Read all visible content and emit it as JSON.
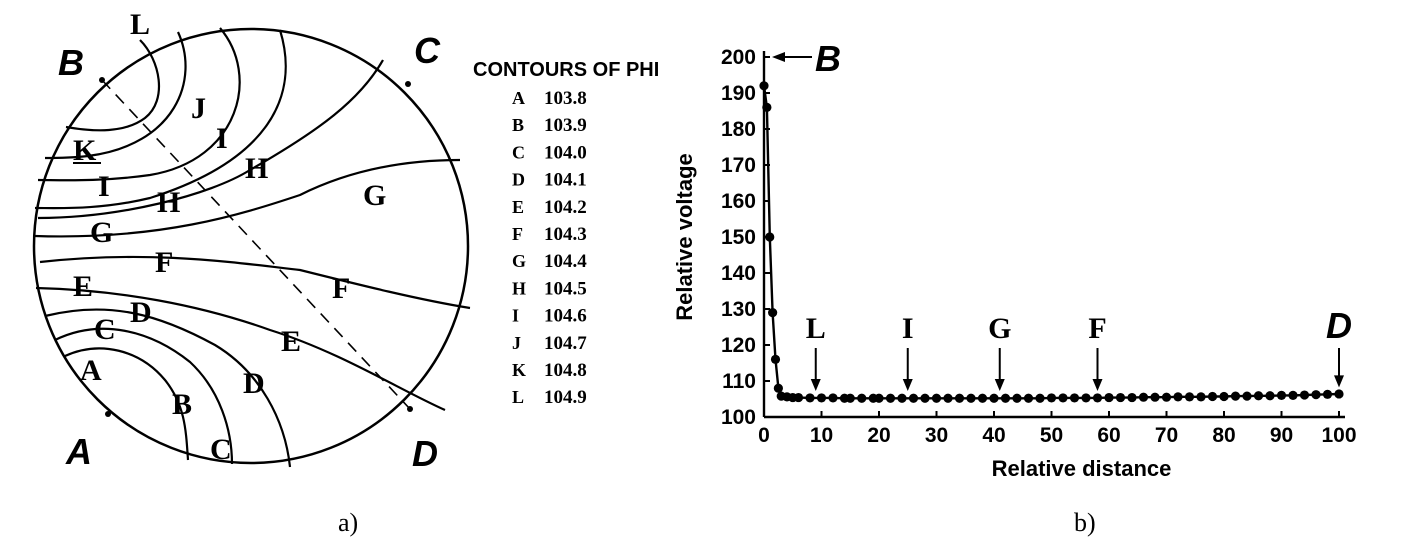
{
  "panels": {
    "a": "a)",
    "b": "b)"
  },
  "map": {
    "corners": {
      "A": "A",
      "B": "B",
      "C": "C",
      "D": "D"
    },
    "legend": {
      "title": "CONTOURS OF PHI",
      "items": [
        {
          "key": "A",
          "value": "103.8"
        },
        {
          "key": "B",
          "value": "103.9"
        },
        {
          "key": "C",
          "value": "104.0"
        },
        {
          "key": "D",
          "value": "104.1"
        },
        {
          "key": "E",
          "value": "104.2"
        },
        {
          "key": "F",
          "value": "104.3"
        },
        {
          "key": "G",
          "value": "104.4"
        },
        {
          "key": "H",
          "value": "104.5"
        },
        {
          "key": "I",
          "value": "104.6"
        },
        {
          "key": "J",
          "value": "104.7"
        },
        {
          "key": "K",
          "value": "104.8"
        },
        {
          "key": "L",
          "value": "104.9"
        }
      ]
    },
    "contour_labels": {
      "L": "L",
      "J": "J",
      "K": "K",
      "I1": "I",
      "I2": "I",
      "H1": "H",
      "H2": "H",
      "G1": "G",
      "G2": "G",
      "F1": "F",
      "F2": "F",
      "E1": "E",
      "E2": "E",
      "D1": "D",
      "D2": "D",
      "C1": "C",
      "C2": "C",
      "B": "B",
      "A": "A"
    }
  },
  "chart_data": {
    "type": "line",
    "title": "",
    "xlabel": "Relative distance",
    "ylabel": "Relative voltage",
    "xlim": [
      0,
      100
    ],
    "ylim": [
      100,
      200
    ],
    "xticks": [
      0,
      10,
      20,
      30,
      40,
      50,
      60,
      70,
      80,
      90,
      100
    ],
    "yticks": [
      100,
      110,
      120,
      130,
      140,
      150,
      160,
      170,
      180,
      190,
      200
    ],
    "series": [
      {
        "x": [
          0,
          0.5,
          1,
          1.5,
          2,
          2.5,
          3,
          4,
          5,
          6,
          8,
          10,
          12,
          14,
          15,
          17,
          19,
          20,
          22,
          24,
          26,
          28,
          30,
          32,
          34,
          36,
          38,
          40,
          42,
          44,
          46,
          48,
          50,
          52,
          54,
          56,
          58,
          60,
          62,
          64,
          66,
          68,
          70,
          72,
          74,
          76,
          78,
          80,
          82,
          84,
          86,
          88,
          90,
          92,
          94,
          96,
          98,
          100
        ],
        "y": [
          192,
          186,
          150,
          129,
          116,
          108,
          105.8,
          105.6,
          105.4,
          105.4,
          105.3,
          105.3,
          105.3,
          105.2,
          105.2,
          105.2,
          105.2,
          105.2,
          105.2,
          105.2,
          105.2,
          105.2,
          105.2,
          105.2,
          105.2,
          105.2,
          105.2,
          105.2,
          105.2,
          105.2,
          105.2,
          105.2,
          105.3,
          105.3,
          105.3,
          105.3,
          105.3,
          105.4,
          105.4,
          105.4,
          105.5,
          105.5,
          105.5,
          105.6,
          105.6,
          105.6,
          105.7,
          105.7,
          105.8,
          105.8,
          105.9,
          105.9,
          106,
          106,
          106.1,
          106.2,
          106.3,
          106.4
        ]
      }
    ],
    "annotations": [
      {
        "label": "B",
        "x": 0,
        "y": 200
      },
      {
        "label": "L",
        "x": 9,
        "y": 105
      },
      {
        "label": "I",
        "x": 25,
        "y": 105
      },
      {
        "label": "G",
        "x": 41,
        "y": 105
      },
      {
        "label": "F",
        "x": 58,
        "y": 105
      },
      {
        "label": "D",
        "x": 100,
        "y": 106
      }
    ]
  }
}
